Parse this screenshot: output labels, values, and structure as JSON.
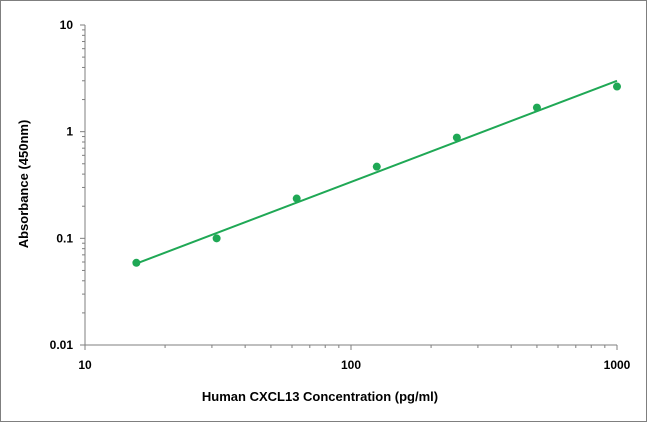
{
  "chart_data": {
    "type": "scatter",
    "title": "",
    "xlabel": "Human CXCL13 Concentration (pg/ml)",
    "ylabel": "Absorbance (450nm)",
    "x_scale": "log",
    "y_scale": "log",
    "xlim": [
      10,
      1000
    ],
    "ylim": [
      0.01,
      10
    ],
    "x_ticks": [
      "10",
      "100",
      "1000"
    ],
    "y_ticks": [
      "0.01",
      "0.1",
      "1",
      "10"
    ],
    "grid": false,
    "legend": "none",
    "series": [
      {
        "marker_color": "#1fa855",
        "x": [
          15.6,
          31.25,
          62.5,
          125,
          250,
          500,
          1000
        ],
        "y": [
          0.059,
          0.1,
          0.236,
          0.47,
          0.88,
          1.68,
          2.65
        ]
      }
    ],
    "fit_line": {
      "color": "#1fa855",
      "x_range": [
        15.6,
        1000
      ],
      "y_range": [
        0.058,
        3.0
      ]
    }
  }
}
